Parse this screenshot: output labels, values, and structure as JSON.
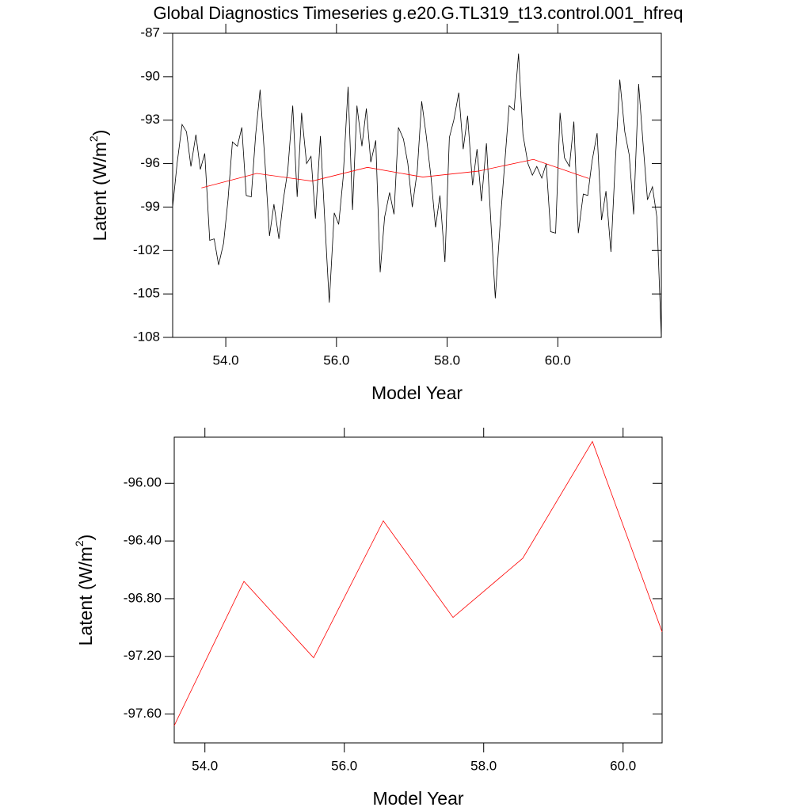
{
  "chart_data": [
    {
      "type": "line",
      "title": "Global Diagnostics Timeseries g.e20.G.TL319_t13.control.001_hfreq",
      "xlabel": "Model Year",
      "ylabel": [
        "Latent (W/m",
        "2",
        ")"
      ],
      "xlim": [
        53.04,
        61.87
      ],
      "ylim": [
        -108,
        -87
      ],
      "xticks": [
        {
          "value": 54,
          "label": "54.0"
        },
        {
          "value": 56,
          "label": "56.0"
        },
        {
          "value": 58,
          "label": "58.0"
        },
        {
          "value": 60,
          "label": "60.0"
        }
      ],
      "yticks": [
        -87,
        -90,
        -93,
        -96,
        -99,
        -102,
        -105,
        -108
      ],
      "series": [
        {
          "color": "#000000",
          "x": [
            53.04,
            53.12,
            53.21,
            53.29,
            53.37,
            53.46,
            53.54,
            53.62,
            53.71,
            53.79,
            53.87,
            53.96,
            54.04,
            54.12,
            54.21,
            54.29,
            54.37,
            54.46,
            54.54,
            54.62,
            54.71,
            54.79,
            54.87,
            54.96,
            55.04,
            55.12,
            55.21,
            55.29,
            55.37,
            55.46,
            55.54,
            55.62,
            55.71,
            55.79,
            55.87,
            55.96,
            56.04,
            56.12,
            56.21,
            56.29,
            56.37,
            56.46,
            56.54,
            56.62,
            56.71,
            56.79,
            56.87,
            56.96,
            57.04,
            57.12,
            57.21,
            57.29,
            57.37,
            57.46,
            57.54,
            57.62,
            57.71,
            57.79,
            57.87,
            57.96,
            58.04,
            58.12,
            58.21,
            58.29,
            58.37,
            58.46,
            58.54,
            58.62,
            58.71,
            58.79,
            58.87,
            58.96,
            59.04,
            59.12,
            59.21,
            59.29,
            59.37,
            59.46,
            59.54,
            59.62,
            59.71,
            59.79,
            59.87,
            59.96,
            60.04,
            60.12,
            60.21,
            60.29,
            60.37,
            60.46,
            60.54,
            60.62,
            60.71,
            60.79,
            60.87,
            60.96,
            61.04,
            61.12,
            61.21,
            61.29,
            61.37,
            61.46,
            61.54,
            61.62,
            61.71,
            61.79,
            61.87
          ],
          "values": [
            -99,
            -96,
            -93.3,
            -93.8,
            -96.2,
            -94,
            -96.4,
            -95.3,
            -101.3,
            -101.2,
            -103,
            -101.5,
            -98.5,
            -94.5,
            -94.8,
            -93.5,
            -98.2,
            -98.3,
            -94,
            -90.9,
            -96,
            -101,
            -98.8,
            -101.2,
            -98.5,
            -96.5,
            -92,
            -98.3,
            -92.5,
            -96,
            -95.5,
            -99.8,
            -94.1,
            -100,
            -105.6,
            -99.4,
            -100.2,
            -97,
            -90.7,
            -99.2,
            -92,
            -94.8,
            -92.2,
            -95.9,
            -94.4,
            -103.5,
            -99.7,
            -98,
            -99.5,
            -93.5,
            -94.3,
            -96,
            -99,
            -96.5,
            -91.7,
            -94,
            -97,
            -100.4,
            -98.2,
            -102.8,
            -94.2,
            -93,
            -91.1,
            -95,
            -92.7,
            -97.5,
            -95,
            -98.6,
            -94.6,
            -100,
            -105.3,
            -100,
            -96,
            -92,
            -92.3,
            -88.4,
            -94,
            -96,
            -96.8,
            -96.2,
            -97,
            -96,
            -100.7,
            -100.8,
            -92.5,
            -95.6,
            -96.2,
            -93.1,
            -100.8,
            -98.1,
            -98.2,
            -95.8,
            -93.9,
            -99.9,
            -97.9,
            -102.1,
            -95.8,
            -90.2,
            -93.8,
            -95.4,
            -99.5,
            -90.5,
            -94.6,
            -98.5,
            -97.6,
            -99.7,
            -108
          ]
        },
        {
          "color": "#ff0000",
          "x": [
            53.56,
            54.56,
            55.56,
            56.56,
            57.56,
            58.56,
            59.56,
            60.56
          ],
          "values": [
            -97.68,
            -96.68,
            -97.21,
            -96.26,
            -96.93,
            -96.52,
            -95.71,
            -97.03
          ]
        }
      ]
    },
    {
      "type": "line",
      "xlabel": "Model Year",
      "ylabel": [
        "Latent (W/m",
        "2",
        ")"
      ],
      "xlim": [
        53.56,
        60.56
      ],
      "ylim": [
        -97.8,
        -95.68
      ],
      "xticks": [
        {
          "value": 54,
          "label": "54.0"
        },
        {
          "value": 56,
          "label": "56.0"
        },
        {
          "value": 58,
          "label": "58.0"
        },
        {
          "value": 60,
          "label": "60.0"
        }
      ],
      "yticks": [
        {
          "value": -96,
          "label": "-96.00"
        },
        {
          "value": -96.4,
          "label": "-96.40"
        },
        {
          "value": -96.8,
          "label": "-96.80"
        },
        {
          "value": -97.2,
          "label": "-97.20"
        },
        {
          "value": -97.6,
          "label": "-97.60"
        }
      ],
      "series": [
        {
          "color": "#ff0000",
          "x": [
            53.56,
            54.56,
            55.56,
            56.56,
            57.56,
            58.56,
            59.56,
            60.56
          ],
          "values": [
            -97.68,
            -96.68,
            -97.21,
            -96.26,
            -96.93,
            -96.52,
            -95.71,
            -97.03
          ]
        }
      ]
    }
  ]
}
